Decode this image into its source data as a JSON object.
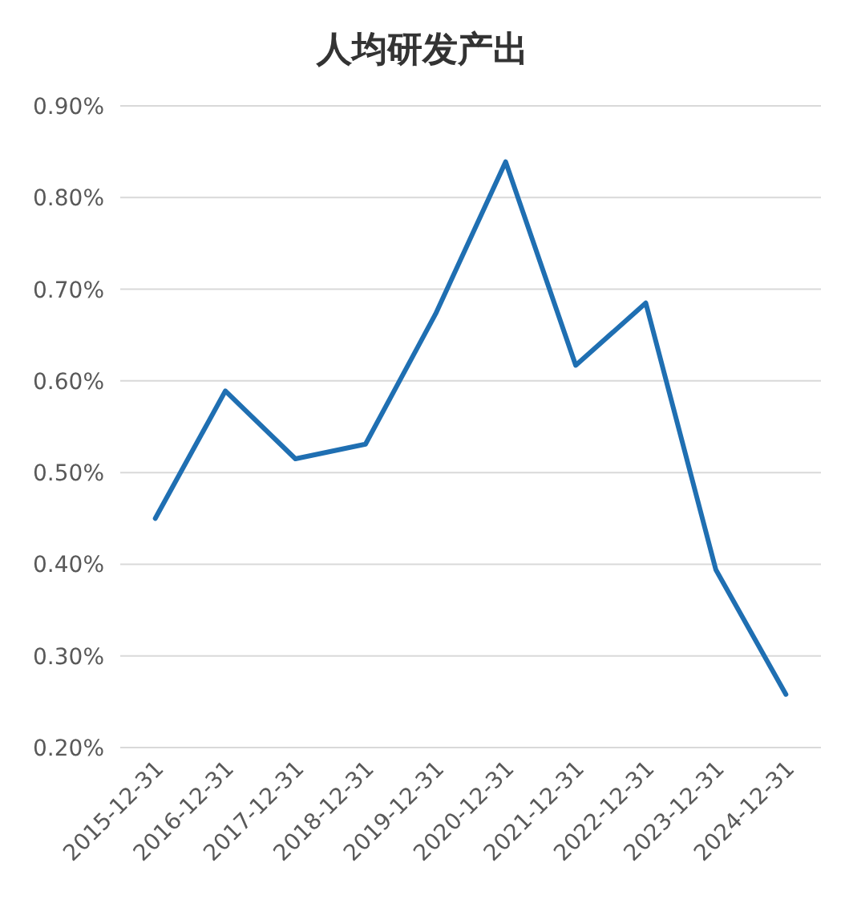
{
  "chart_data": {
    "type": "line",
    "title": "人均研发产出",
    "categories": [
      "2015-12-31",
      "2016-12-31",
      "2017-12-31",
      "2018-12-31",
      "2019-12-31",
      "2020-12-31",
      "2021-12-31",
      "2022-12-31",
      "2023-12-31",
      "2024-12-31"
    ],
    "series": [
      {
        "color": "#1f6fb2",
        "values": [
          0.45,
          0.589,
          0.515,
          0.531,
          0.673,
          0.839,
          0.617,
          0.685,
          0.394,
          0.258
        ]
      }
    ],
    "ylim": [
      0.2,
      0.9
    ],
    "yticks": [
      {
        "value": 0.2,
        "label": "0.20%"
      },
      {
        "value": 0.3,
        "label": "0.30%"
      },
      {
        "value": 0.4,
        "label": "0.40%"
      },
      {
        "value": 0.5,
        "label": "0.50%"
      },
      {
        "value": 0.6,
        "label": "0.60%"
      },
      {
        "value": 0.7,
        "label": "0.70%"
      },
      {
        "value": 0.8,
        "label": "0.80%"
      },
      {
        "value": 0.9,
        "label": "0.90%"
      }
    ],
    "grid": "y"
  }
}
